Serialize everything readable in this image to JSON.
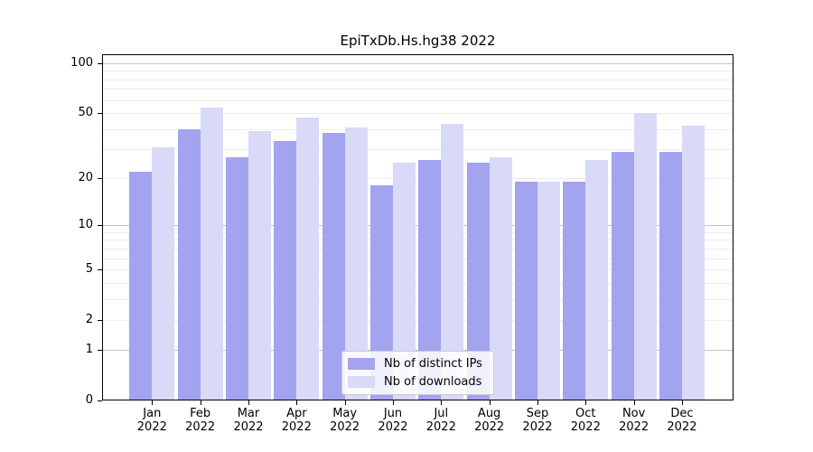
{
  "title": "EpiTxDb.Hs.hg38 2022",
  "legend": {
    "items": [
      {
        "label": "Nb of distinct IPs",
        "color": "#a3a3f0"
      },
      {
        "label": "Nb of downloads",
        "color": "#d9d9f8"
      }
    ]
  },
  "colors": {
    "ips": "#a3a3f0",
    "downloads": "#d9d9f8",
    "grid_minor": "#ececec",
    "grid_major": "#c4c4c4",
    "axis": "#000000",
    "legend_border": "#cccccc"
  },
  "y_axis": {
    "tick_labels": [
      100,
      50,
      20,
      10,
      5,
      2,
      1,
      0
    ],
    "minor_gridlines": [
      2,
      3,
      4,
      5,
      6,
      7,
      8,
      9,
      20,
      30,
      40,
      50,
      60,
      70,
      80,
      90
    ],
    "major_gridlines": [
      1,
      10,
      100
    ]
  },
  "x_axis": {
    "months": [
      "Jan",
      "Feb",
      "Mar",
      "Apr",
      "May",
      "Jun",
      "Jul",
      "Aug",
      "Sep",
      "Oct",
      "Nov",
      "Dec"
    ],
    "year": "2022"
  },
  "chart_data": {
    "type": "bar",
    "title": "EpiTxDb.Hs.hg38 2022",
    "categories": [
      "Jan 2022",
      "Feb 2022",
      "Mar 2022",
      "Apr 2022",
      "May 2022",
      "Jun 2022",
      "Jul 2022",
      "Aug 2022",
      "Sep 2022",
      "Oct 2022",
      "Nov 2022",
      "Dec 2022"
    ],
    "series": [
      {
        "name": "Nb of distinct IPs",
        "color": "#a3a3f0",
        "values": [
          22,
          40,
          27,
          34,
          38,
          18,
          26,
          25,
          19,
          19,
          29,
          29
        ]
      },
      {
        "name": "Nb of downloads",
        "color": "#d9d9f8",
        "values": [
          31,
          54,
          39,
          47,
          41,
          25,
          43,
          27,
          19,
          26,
          50,
          42
        ]
      }
    ],
    "xlabel": "",
    "ylabel": "",
    "yscale": "log1p",
    "ylim": [
      0,
      100
    ],
    "yticks": [
      0,
      1,
      2,
      5,
      10,
      20,
      50,
      100
    ],
    "grid": true,
    "legend_position": "inside-bottom-center"
  }
}
